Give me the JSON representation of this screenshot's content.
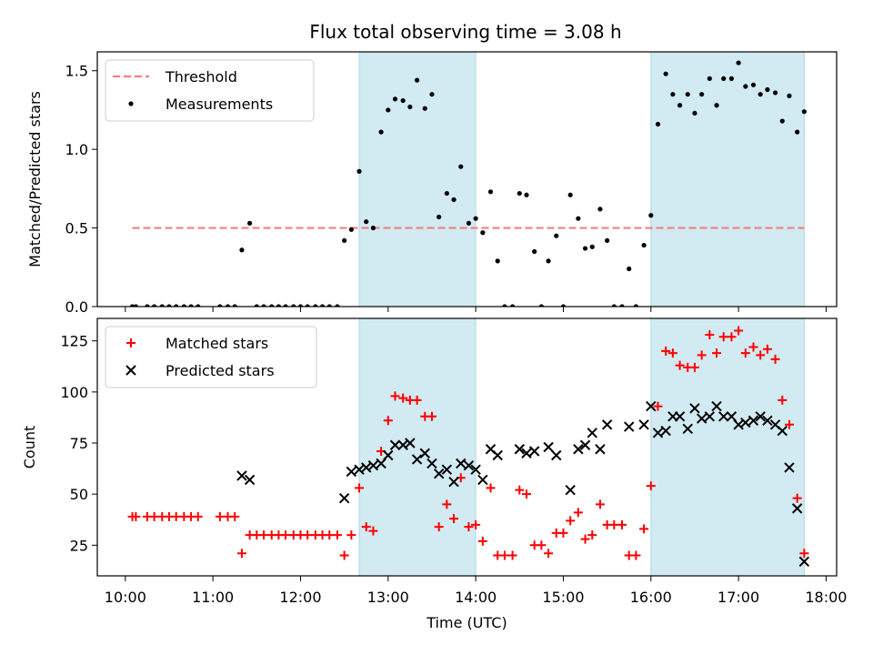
{
  "title": "Flux total observing time = 3.08 h",
  "colors": {
    "threshold": "#f08080",
    "measurements": "#000000",
    "matched": "#ff0000",
    "predicted": "#000000",
    "span": "#add8e6"
  },
  "chart_data": [
    {
      "type": "scatter",
      "ylabel": "Matched/Predicted stars",
      "ylim": [
        0,
        1.62
      ],
      "yticks": [
        0.0,
        0.5,
        1.0,
        1.5
      ],
      "ytick_labels": [
        "0.0",
        "0.5",
        "1.0",
        "1.5"
      ],
      "xlim": [
        9.68,
        18.12
      ],
      "legend": {
        "placement": "top-left",
        "entries": [
          "Threshold",
          "Measurements"
        ]
      },
      "threshold": {
        "name": "Threshold",
        "value": 0.5,
        "x_range": [
          10.08,
          17.75
        ]
      },
      "shaded_spans": [
        [
          12.67,
          14.0
        ],
        [
          16.0,
          17.75
        ]
      ],
      "series": [
        {
          "name": "Measurements",
          "marker": "dot",
          "x": [
            10.08,
            10.12,
            10.25,
            10.33,
            10.42,
            10.5,
            10.58,
            10.67,
            10.75,
            10.83,
            11.08,
            11.17,
            11.25,
            11.33,
            11.42,
            11.5,
            11.58,
            11.67,
            11.75,
            11.83,
            11.92,
            12.0,
            12.08,
            12.17,
            12.25,
            12.33,
            12.42,
            12.5,
            12.58,
            12.67,
            12.75,
            12.83,
            12.92,
            13.0,
            13.08,
            13.17,
            13.25,
            13.33,
            13.42,
            13.5,
            13.58,
            13.67,
            13.75,
            13.83,
            13.92,
            14.0,
            14.08,
            14.17,
            14.25,
            14.33,
            14.42,
            14.5,
            14.58,
            14.67,
            14.75,
            14.83,
            14.92,
            15.0,
            15.08,
            15.17,
            15.25,
            15.33,
            15.42,
            15.5,
            15.58,
            15.67,
            15.75,
            15.83,
            15.92,
            16.0,
            16.08,
            16.17,
            16.25,
            16.33,
            16.42,
            16.5,
            16.58,
            16.67,
            16.75,
            16.83,
            16.92,
            17.0,
            17.08,
            17.17,
            17.25,
            17.33,
            17.42,
            17.5,
            17.58,
            17.67,
            17.75
          ],
          "y": [
            0,
            0,
            0,
            0,
            0,
            0,
            0,
            0,
            0,
            0,
            0,
            0,
            0,
            0.36,
            0.53,
            0,
            0,
            0,
            0,
            0,
            0,
            0,
            0,
            0,
            0,
            0,
            0,
            0.42,
            0.49,
            0.86,
            0.54,
            0.5,
            1.11,
            1.25,
            1.32,
            1.31,
            1.27,
            1.44,
            1.26,
            1.35,
            0.57,
            0.72,
            0.68,
            0.89,
            0.53,
            0.56,
            0.47,
            0.73,
            0.29,
            0,
            0,
            0.72,
            0.71,
            0.35,
            0,
            0.29,
            0.45,
            0,
            0.71,
            0.56,
            0.37,
            0.38,
            0.62,
            0.42,
            0,
            0,
            0.24,
            0,
            0.39,
            0.58,
            1.16,
            1.48,
            1.35,
            1.28,
            1.35,
            1.23,
            1.35,
            1.45,
            1.28,
            1.45,
            1.45,
            1.55,
            1.4,
            1.41,
            1.35,
            1.38,
            1.36,
            1.18,
            1.34,
            1.11,
            1.24
          ]
        }
      ]
    },
    {
      "type": "scatter",
      "xlabel": "Time (UTC)",
      "ylabel": "Count",
      "ylim": [
        10,
        136
      ],
      "yticks": [
        25,
        50,
        75,
        100,
        125
      ],
      "ytick_labels": [
        "25",
        "50",
        "75",
        "100",
        "125"
      ],
      "xlim": [
        9.68,
        18.12
      ],
      "xticks": [
        10,
        11,
        12,
        13,
        14,
        15,
        16,
        17,
        18
      ],
      "xtick_labels": [
        "10:00",
        "11:00",
        "12:00",
        "13:00",
        "14:00",
        "15:00",
        "16:00",
        "17:00",
        "18:00"
      ],
      "legend": {
        "placement": "top-left",
        "entries": [
          "Matched stars",
          "Predicted stars"
        ]
      },
      "shaded_spans": [
        [
          12.67,
          14.0
        ],
        [
          16.0,
          17.75
        ]
      ],
      "series": [
        {
          "name": "Matched stars",
          "marker": "plus",
          "x": [
            10.08,
            10.12,
            10.25,
            10.33,
            10.42,
            10.5,
            10.58,
            10.67,
            10.75,
            10.83,
            11.08,
            11.17,
            11.25,
            11.33,
            11.42,
            11.5,
            11.58,
            11.67,
            11.75,
            11.83,
            11.92,
            12.0,
            12.08,
            12.17,
            12.25,
            12.33,
            12.42,
            12.5,
            12.58,
            12.67,
            12.75,
            12.83,
            12.92,
            13.0,
            13.08,
            13.17,
            13.25,
            13.33,
            13.42,
            13.5,
            13.58,
            13.67,
            13.75,
            13.83,
            13.92,
            14.0,
            14.08,
            14.17,
            14.25,
            14.33,
            14.42,
            14.5,
            14.58,
            14.67,
            14.75,
            14.83,
            14.92,
            15.0,
            15.08,
            15.17,
            15.25,
            15.33,
            15.42,
            15.5,
            15.58,
            15.67,
            15.75,
            15.83,
            15.92,
            16.0,
            16.08,
            16.17,
            16.25,
            16.33,
            16.42,
            16.5,
            16.58,
            16.67,
            16.75,
            16.83,
            16.92,
            17.0,
            17.08,
            17.17,
            17.25,
            17.33,
            17.42,
            17.5,
            17.58,
            17.67,
            17.75
          ],
          "y": [
            39,
            39,
            39,
            39,
            39,
            39,
            39,
            39,
            39,
            39,
            39,
            39,
            39,
            21,
            30,
            30,
            30,
            30,
            30,
            30,
            30,
            30,
            30,
            30,
            30,
            30,
            30,
            20,
            30,
            53,
            34,
            32,
            71,
            86,
            98,
            97,
            96,
            96,
            88,
            88,
            34,
            45,
            38,
            58,
            34,
            35,
            27,
            53,
            20,
            20,
            20,
            52,
            50,
            25,
            25,
            21,
            31,
            31,
            37,
            41,
            28,
            30,
            45,
            35,
            35,
            35,
            20,
            20,
            33,
            54,
            93,
            120,
            119,
            113,
            112,
            112,
            118,
            128,
            119,
            127,
            127,
            130,
            119,
            122,
            118,
            121,
            116,
            96,
            84,
            48,
            21
          ]
        },
        {
          "name": "Predicted stars",
          "marker": "x",
          "x": [
            11.33,
            11.42,
            12.5,
            12.58,
            12.67,
            12.75,
            12.83,
            12.92,
            13.0,
            13.08,
            13.17,
            13.25,
            13.33,
            13.42,
            13.5,
            13.58,
            13.67,
            13.75,
            13.83,
            13.92,
            14.0,
            14.08,
            14.17,
            14.25,
            14.5,
            14.58,
            14.67,
            14.83,
            14.92,
            15.08,
            15.17,
            15.25,
            15.33,
            15.42,
            15.5,
            15.75,
            15.92,
            16.0,
            16.08,
            16.17,
            16.25,
            16.33,
            16.42,
            16.5,
            16.58,
            16.67,
            16.75,
            16.83,
            16.92,
            17.0,
            17.08,
            17.17,
            17.25,
            17.33,
            17.42,
            17.5,
            17.58,
            17.67,
            17.75
          ],
          "y": [
            59,
            57,
            48,
            61,
            62,
            63,
            64,
            65,
            69,
            74,
            74,
            75,
            67,
            70,
            65,
            60,
            62,
            56,
            65,
            64,
            62,
            57,
            72,
            69,
            72,
            70,
            71,
            73,
            69,
            52,
            72,
            74,
            80,
            72,
            84,
            83,
            84,
            93,
            80,
            81,
            88,
            88,
            82,
            92,
            87,
            88,
            93,
            88,
            88,
            84,
            85,
            86,
            88,
            86,
            84,
            81,
            63,
            43,
            17
          ]
        }
      ]
    }
  ]
}
